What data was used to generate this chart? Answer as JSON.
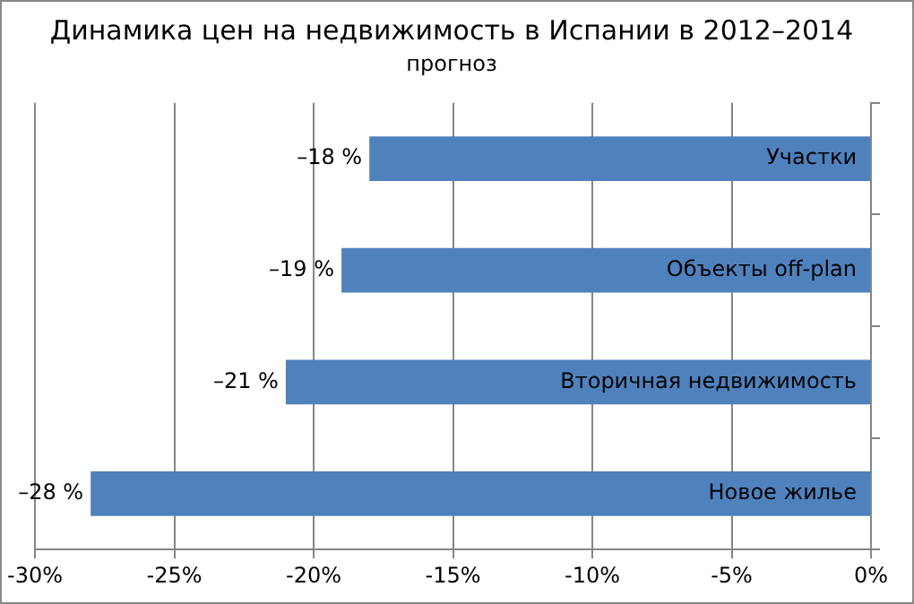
{
  "chart_data": {
    "type": "bar",
    "orientation": "horizontal",
    "title": "Динамика цен на недвижимость в Испании в 2012–2014",
    "subtitle": "прогноз",
    "categories": [
      "Участки",
      "Объекты off-plan",
      "Вторичная недвижимость",
      "Новое жилье"
    ],
    "values": [
      -18,
      -19,
      -21,
      -28
    ],
    "color": "#4f81bd",
    "value_labels": [
      "–18 %",
      "–19 %",
      "–21 %",
      "–28 %"
    ],
    "xlim": [
      -30,
      0
    ],
    "xticks": [
      {
        "value": -30,
        "label": "-30%"
      },
      {
        "value": -25,
        "label": "-25%"
      },
      {
        "value": -20,
        "label": "-20%"
      },
      {
        "value": -15,
        "label": "-15%"
      },
      {
        "value": -10,
        "label": "-10%"
      },
      {
        "value": -5,
        "label": "-5%"
      },
      {
        "value": 0,
        "label": "0%"
      }
    ],
    "grid": "x"
  }
}
